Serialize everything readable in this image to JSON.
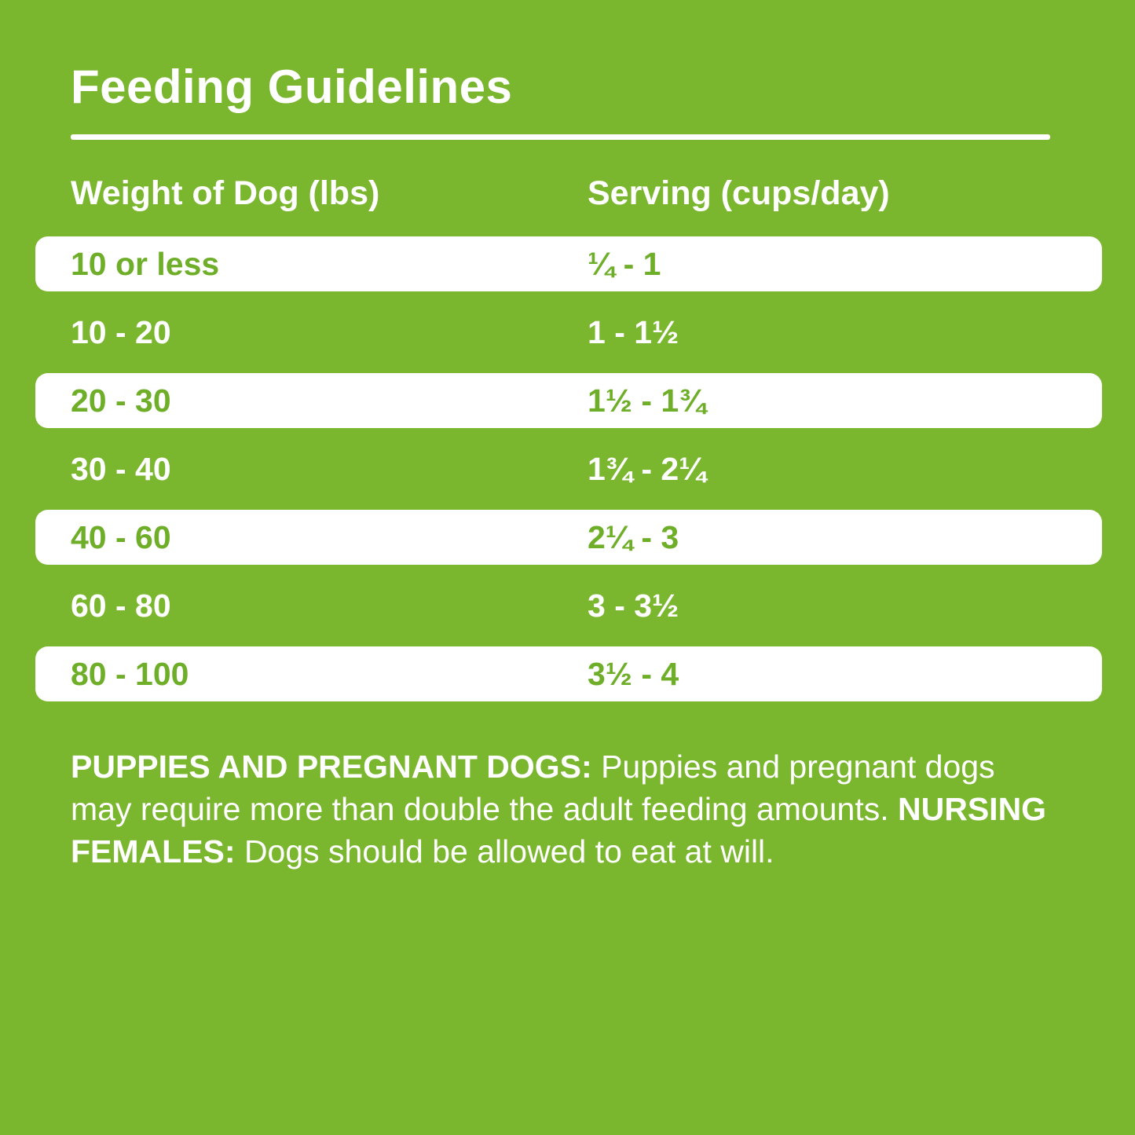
{
  "page": {
    "title": "Feeding Guidelines",
    "background_color": "#7ab72e",
    "row_text_green": "#6fae29",
    "text_color": "#ffffff"
  },
  "table": {
    "columns": [
      "Weight of Dog (lbs)",
      "Serving (cups/day)"
    ],
    "rows": [
      {
        "weight": "10 or less",
        "serving": "¼ - 1",
        "highlighted": true
      },
      {
        "weight": "10 - 20",
        "serving": "1 - 1½",
        "highlighted": false
      },
      {
        "weight": "20 - 30",
        "serving": "1½ - 1¾",
        "highlighted": true
      },
      {
        "weight": "30 - 40",
        "serving": "1¾ - 2¼",
        "highlighted": false
      },
      {
        "weight": "40 - 60",
        "serving": "2¼ - 3",
        "highlighted": true
      },
      {
        "weight": "60 - 80",
        "serving": "3 - 3½",
        "highlighted": false
      },
      {
        "weight": "80 - 100",
        "serving": "3½ - 4",
        "highlighted": true
      }
    ]
  },
  "footer": {
    "bold1": "PUPPIES AND PREGNANT DOGS:",
    "text1": " Puppies and pregnant dogs may require more than double the adult feeding amounts. ",
    "bold2": "NURSING FEMALES:",
    "text2": " Dogs should be allowed to eat at will."
  }
}
